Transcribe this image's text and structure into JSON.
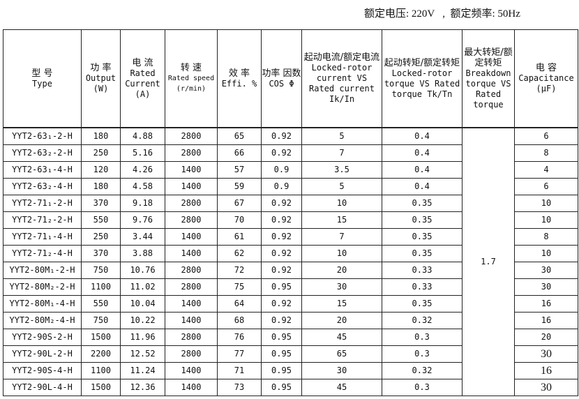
{
  "note": "额定电压: 220V   ,  额定频率: 50Hz",
  "headers": [
    {
      "cn": "型 号",
      "en": "Type"
    },
    {
      "cn": "功 率",
      "en": "Output (W)"
    },
    {
      "cn": "电 流",
      "en": "Rated Current (A)"
    },
    {
      "cn": "转 速",
      "en": "Rated speed (r/min)"
    },
    {
      "cn": "效 率",
      "en": "Effi. %"
    },
    {
      "cn": "功率 因数",
      "en": "COS Φ"
    },
    {
      "cn": "起动电流/额定电流",
      "en": "Locked-rotor current VS Rated current Ik/In"
    },
    {
      "cn": "起动转矩/额定转矩",
      "en": "Locked-rotor torque VS Rated torque Tk/Tn"
    },
    {
      "cn": "最大转矩/额定转矩",
      "en": "Breakdown torque VS Rated torque"
    },
    {
      "cn": "电 容",
      "en": "Capacitance (μF)"
    }
  ],
  "breakdown_torque": "1.7",
  "rows": [
    [
      "YYT2-63₁-2-H",
      "180",
      "4.88",
      "2800",
      "65",
      "0.92",
      "5",
      "0.4",
      "6"
    ],
    [
      "YYT2-63₂-2-H",
      "250",
      "5.16",
      "2800",
      "66",
      "0.92",
      "7",
      "0.4",
      "8"
    ],
    [
      "YYT2-63₁-4-H",
      "120",
      "4.26",
      "1400",
      "57",
      "0.9",
      "3.5",
      "0.4",
      "4"
    ],
    [
      "YYT2-63₂-4-H",
      "180",
      "4.58",
      "1400",
      "59",
      "0.9",
      "5",
      "0.4",
      "6"
    ],
    [
      "YYT2-71₁-2-H",
      "370",
      "9.18",
      "2800",
      "67",
      "0.92",
      "10",
      "0.35",
      "10"
    ],
    [
      "YYT2-71₂-2-H",
      "550",
      "9.76",
      "2800",
      "70",
      "0.92",
      "15",
      "0.35",
      "10"
    ],
    [
      "YYT2-71₁-4-H",
      "250",
      "3.44",
      "1400",
      "61",
      "0.92",
      "7",
      "0.35",
      "8"
    ],
    [
      "YYT2-71₂-4-H",
      "370",
      "3.88",
      "1400",
      "62",
      "0.92",
      "10",
      "0.35",
      "10"
    ],
    [
      "YYT2-80M₁-2-H",
      "750",
      "10.76",
      "2800",
      "72",
      "0.92",
      "20",
      "0.33",
      "30"
    ],
    [
      "YYT2-80M₂-2-H",
      "1100",
      "11.02",
      "2800",
      "75",
      "0.95",
      "30",
      "0.33",
      "30"
    ],
    [
      "YYT2-80M₁-4-H",
      "550",
      "10.04",
      "1400",
      "64",
      "0.92",
      "15",
      "0.35",
      "16"
    ],
    [
      "YYT2-80M₂-4-H",
      "750",
      "10.22",
      "1400",
      "68",
      "0.92",
      "20",
      "0.32",
      "16"
    ],
    [
      "YYT2-90S-2-H",
      "1500",
      "11.96",
      "2800",
      "76",
      "0.95",
      "45",
      "0.3",
      "20"
    ],
    [
      "YYT2-90L-2-H",
      "2200",
      "12.52",
      "2800",
      "77",
      "0.95",
      "65",
      "0.3",
      "30"
    ],
    [
      "YYT2-90S-4-H",
      "1100",
      "11.24",
      "1400",
      "71",
      "0.95",
      "30",
      "0.32",
      "16"
    ],
    [
      "YYT2-90L-4-H",
      "1500",
      "12.36",
      "1400",
      "73",
      "0.95",
      "45",
      "0.3",
      "30"
    ]
  ]
}
